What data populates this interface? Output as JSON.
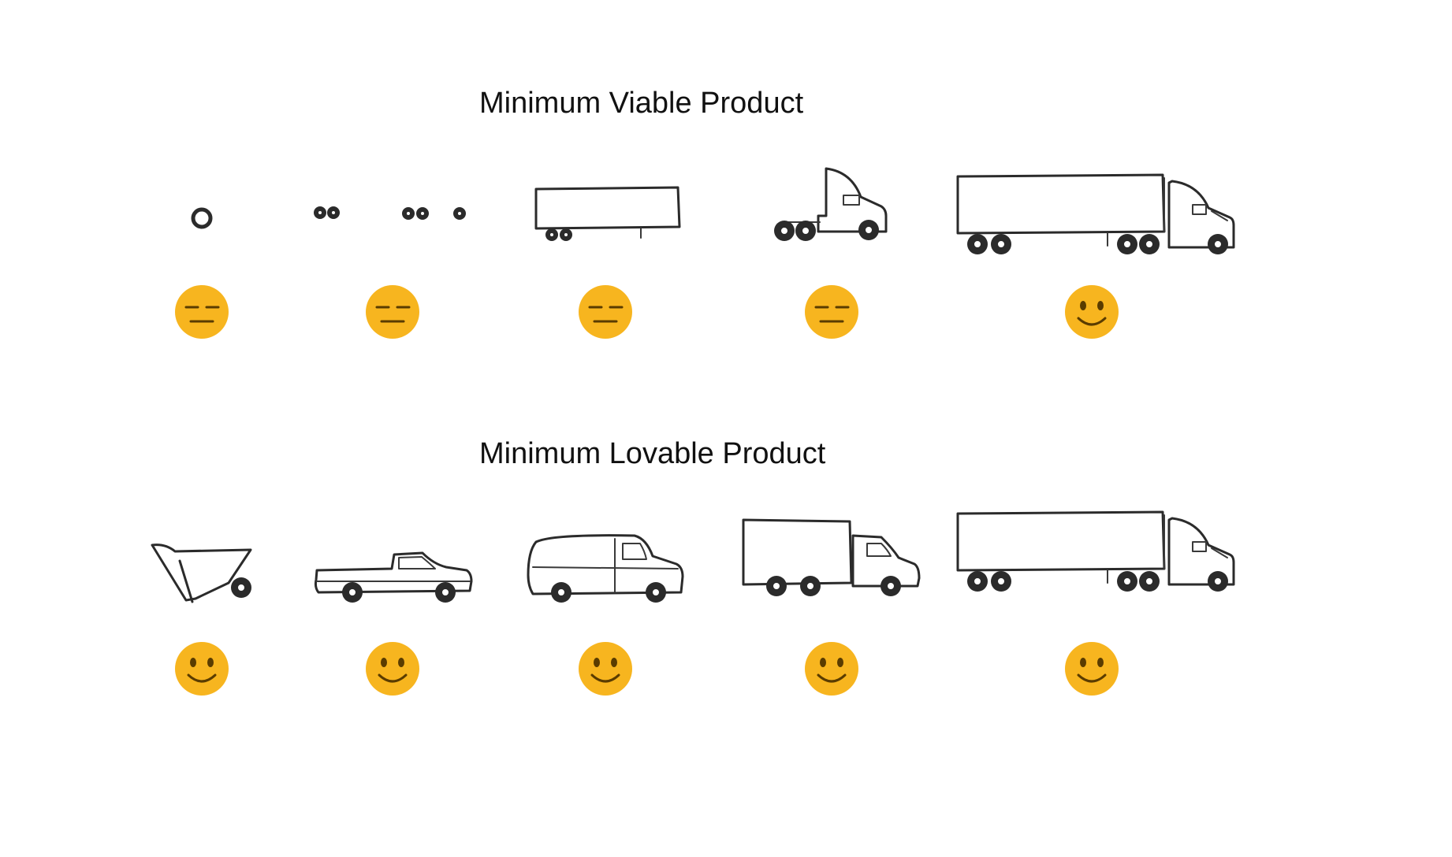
{
  "sections": {
    "mvp": {
      "title": "Minimum Viable Product",
      "steps": [
        {
          "vehicle": "single-wheel",
          "mood": "neutral"
        },
        {
          "vehicle": "wheels-and-axles",
          "mood": "neutral"
        },
        {
          "vehicle": "trailer",
          "mood": "neutral"
        },
        {
          "vehicle": "tractor-cab",
          "mood": "neutral"
        },
        {
          "vehicle": "semi-truck",
          "mood": "happy"
        }
      ]
    },
    "mlp": {
      "title": "Minimum Lovable Product",
      "steps": [
        {
          "vehicle": "wheelbarrow",
          "mood": "happy"
        },
        {
          "vehicle": "pickup-truck",
          "mood": "happy"
        },
        {
          "vehicle": "van",
          "mood": "happy"
        },
        {
          "vehicle": "box-truck",
          "mood": "happy"
        },
        {
          "vehicle": "semi-truck",
          "mood": "happy"
        }
      ]
    }
  },
  "colors": {
    "face": "#F7B51F",
    "ink": "#2b2b2b"
  }
}
